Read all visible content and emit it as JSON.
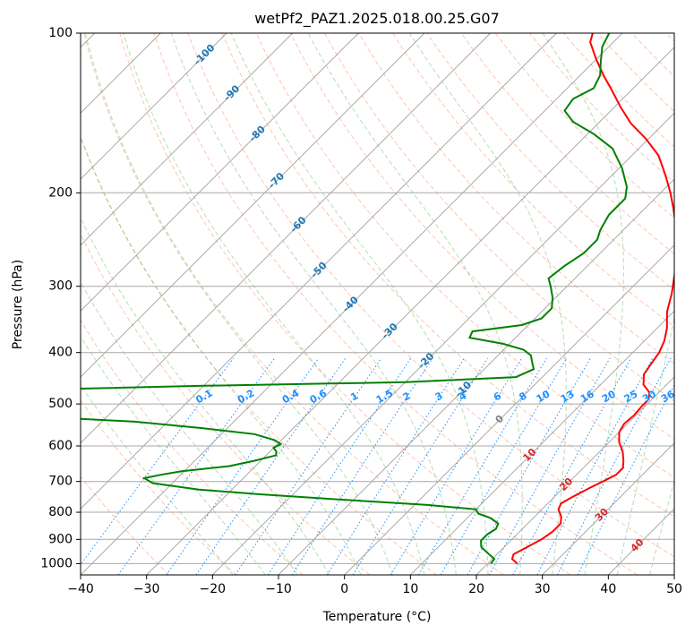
{
  "chart_data": {
    "type": "line",
    "title": "wetPf2_PAZ1.2025.018.00.25.G07",
    "xlabel": "Temperature (°C)",
    "ylabel": "Pressure (hPa)",
    "xlim": [
      -40,
      50
    ],
    "ylim": [
      1050,
      100
    ],
    "y_scale": "log",
    "grid": true,
    "x_ticks": [
      -40,
      -30,
      -20,
      -10,
      0,
      10,
      20,
      30,
      40,
      50
    ],
    "y_ticks": [
      1000,
      900,
      800,
      700,
      600,
      500,
      400,
      300,
      200,
      100
    ],
    "skew": true,
    "series": [
      {
        "color": "#ff0000",
        "points": [
          {
            "t": 24.5,
            "p": 1000
          },
          {
            "t": 23.0,
            "p": 980
          },
          {
            "t": 22.5,
            "p": 960
          },
          {
            "t": 23.5,
            "p": 930
          },
          {
            "t": 24.5,
            "p": 900
          },
          {
            "t": 25.0,
            "p": 870
          },
          {
            "t": 25.0,
            "p": 840
          },
          {
            "t": 24.0,
            "p": 815
          },
          {
            "t": 22.5,
            "p": 790
          },
          {
            "t": 22.0,
            "p": 770
          },
          {
            "t": 22.7,
            "p": 750
          },
          {
            "t": 24.0,
            "p": 720
          },
          {
            "t": 25.0,
            "p": 700
          },
          {
            "t": 26.0,
            "p": 680
          },
          {
            "t": 26.0,
            "p": 660
          },
          {
            "t": 25.0,
            "p": 640
          },
          {
            "t": 23.5,
            "p": 615
          },
          {
            "t": 21.5,
            "p": 590
          },
          {
            "t": 20.0,
            "p": 565
          },
          {
            "t": 19.5,
            "p": 545
          },
          {
            "t": 19.7,
            "p": 525
          },
          {
            "t": 19.5,
            "p": 505
          },
          {
            "t": 19.5,
            "p": 490
          },
          {
            "t": 18.5,
            "p": 475
          },
          {
            "t": 16.5,
            "p": 460
          },
          {
            "t": 15.0,
            "p": 440
          },
          {
            "t": 14.5,
            "p": 420
          },
          {
            "t": 14.0,
            "p": 400
          },
          {
            "t": 13.0,
            "p": 380
          },
          {
            "t": 11.5,
            "p": 360
          },
          {
            "t": 9.0,
            "p": 335
          },
          {
            "t": 7.0,
            "p": 310
          },
          {
            "t": 4.5,
            "p": 285
          },
          {
            "t": 1.5,
            "p": 260
          },
          {
            "t": -2.0,
            "p": 235
          },
          {
            "t": -5.5,
            "p": 215
          },
          {
            "t": -8.5,
            "p": 200
          },
          {
            "t": -12.0,
            "p": 185
          },
          {
            "t": -16.0,
            "p": 170
          },
          {
            "t": -20.5,
            "p": 158
          },
          {
            "t": -25.0,
            "p": 148
          },
          {
            "t": -29.0,
            "p": 138
          },
          {
            "t": -33.0,
            "p": 128
          },
          {
            "t": -36.5,
            "p": 120
          },
          {
            "t": -40.0,
            "p": 112
          },
          {
            "t": -43.5,
            "p": 104
          },
          {
            "t": -44.5,
            "p": 100
          }
        ]
      },
      {
        "color": "#008000",
        "points": [
          {
            "t": 20.5,
            "p": 1000
          },
          {
            "t": 20.3,
            "p": 980
          },
          {
            "t": 18.0,
            "p": 950
          },
          {
            "t": 16.5,
            "p": 930
          },
          {
            "t": 15.5,
            "p": 905
          },
          {
            "t": 15.5,
            "p": 880
          },
          {
            "t": 16.0,
            "p": 860
          },
          {
            "t": 15.5,
            "p": 840
          },
          {
            "t": 13.5,
            "p": 820
          },
          {
            "t": 11.0,
            "p": 805
          },
          {
            "t": 10.0,
            "p": 790
          },
          {
            "t": 2.0,
            "p": 775
          },
          {
            "t": -10.0,
            "p": 760
          },
          {
            "t": -25.0,
            "p": 740
          },
          {
            "t": -35.0,
            "p": 725
          },
          {
            "t": -43.0,
            "p": 705
          },
          {
            "t": -45.0,
            "p": 690
          },
          {
            "t": -43.0,
            "p": 680
          },
          {
            "t": -40.5,
            "p": 670
          },
          {
            "t": -34.0,
            "p": 655
          },
          {
            "t": -31.0,
            "p": 640
          },
          {
            "t": -28.5,
            "p": 625
          },
          {
            "t": -29.0,
            "p": 615
          },
          {
            "t": -30.0,
            "p": 605
          },
          {
            "t": -29.5,
            "p": 595
          },
          {
            "t": -31.0,
            "p": 585
          },
          {
            "t": -35.0,
            "p": 570
          },
          {
            "t": -44.0,
            "p": 555
          },
          {
            "t": -55.0,
            "p": 540
          },
          {
            "t": -68.0,
            "p": 530
          },
          {
            "t": -80.0,
            "p": 523
          },
          {
            "t": -85.0,
            "p": 480
          },
          {
            "t": -75.0,
            "p": 470
          },
          {
            "t": -50.0,
            "p": 462
          },
          {
            "t": -20.0,
            "p": 455
          },
          {
            "t": -4.0,
            "p": 445
          },
          {
            "t": -2.5,
            "p": 430
          },
          {
            "t": -4.0,
            "p": 415
          },
          {
            "t": -5.0,
            "p": 405
          },
          {
            "t": -7.0,
            "p": 395
          },
          {
            "t": -11.0,
            "p": 385
          },
          {
            "t": -17.0,
            "p": 375
          },
          {
            "t": -17.5,
            "p": 365
          },
          {
            "t": -11.0,
            "p": 355
          },
          {
            "t": -9.0,
            "p": 345
          },
          {
            "t": -9.0,
            "p": 330
          },
          {
            "t": -10.5,
            "p": 315
          },
          {
            "t": -12.5,
            "p": 300
          },
          {
            "t": -14.0,
            "p": 290
          },
          {
            "t": -13.5,
            "p": 275
          },
          {
            "t": -12.5,
            "p": 260
          },
          {
            "t": -12.5,
            "p": 245
          },
          {
            "t": -13.5,
            "p": 235
          },
          {
            "t": -14.5,
            "p": 220
          },
          {
            "t": -14.5,
            "p": 205
          },
          {
            "t": -16.0,
            "p": 195
          },
          {
            "t": -19.5,
            "p": 180
          },
          {
            "t": -24.0,
            "p": 165
          },
          {
            "t": -29.0,
            "p": 155
          },
          {
            "t": -34.0,
            "p": 147
          },
          {
            "t": -37.0,
            "p": 140
          },
          {
            "t": -37.5,
            "p": 133
          },
          {
            "t": -36.0,
            "p": 127
          },
          {
            "t": -37.0,
            "p": 120
          },
          {
            "t": -39.0,
            "p": 113
          },
          {
            "t": -41.0,
            "p": 106
          },
          {
            "t": -42.0,
            "p": 100
          }
        ]
      }
    ],
    "isotherm_labels": [
      {
        "text": "-100",
        "t": -100,
        "p": 110
      },
      {
        "text": "-90",
        "t": -90,
        "p": 130
      },
      {
        "text": "-80",
        "t": -80,
        "p": 155
      },
      {
        "text": "-70",
        "t": -70,
        "p": 190
      },
      {
        "text": "-60",
        "t": -60,
        "p": 230
      },
      {
        "text": "-50",
        "t": -50,
        "p": 280
      },
      {
        "text": "-40",
        "t": -40,
        "p": 325
      },
      {
        "text": "-30",
        "t": -30,
        "p": 365
      },
      {
        "text": "-20",
        "t": -20,
        "p": 415
      },
      {
        "text": "-10",
        "t": -10,
        "p": 470
      },
      {
        "text": "0",
        "t": 0,
        "p": 535
      },
      {
        "text": "10",
        "t": 10,
        "p": 625
      },
      {
        "text": "20",
        "t": 20,
        "p": 710
      },
      {
        "text": "30",
        "t": 30,
        "p": 810
      },
      {
        "text": "40",
        "t": 40,
        "p": 925
      }
    ],
    "mixing_ratio_labels": [
      "0.1",
      "0.2",
      "0.4",
      "0.6",
      "1",
      "1.5",
      "2",
      "3",
      "4",
      "6",
      "8",
      "10",
      "13",
      "16",
      "20",
      "25",
      "30",
      "36"
    ],
    "mixing_ratio_label_pressure": 485,
    "label_colors": {
      "negative": "#1f77b4",
      "zero": "#808080",
      "positive": "#d62728",
      "mixing": "#1e90ff"
    }
  }
}
